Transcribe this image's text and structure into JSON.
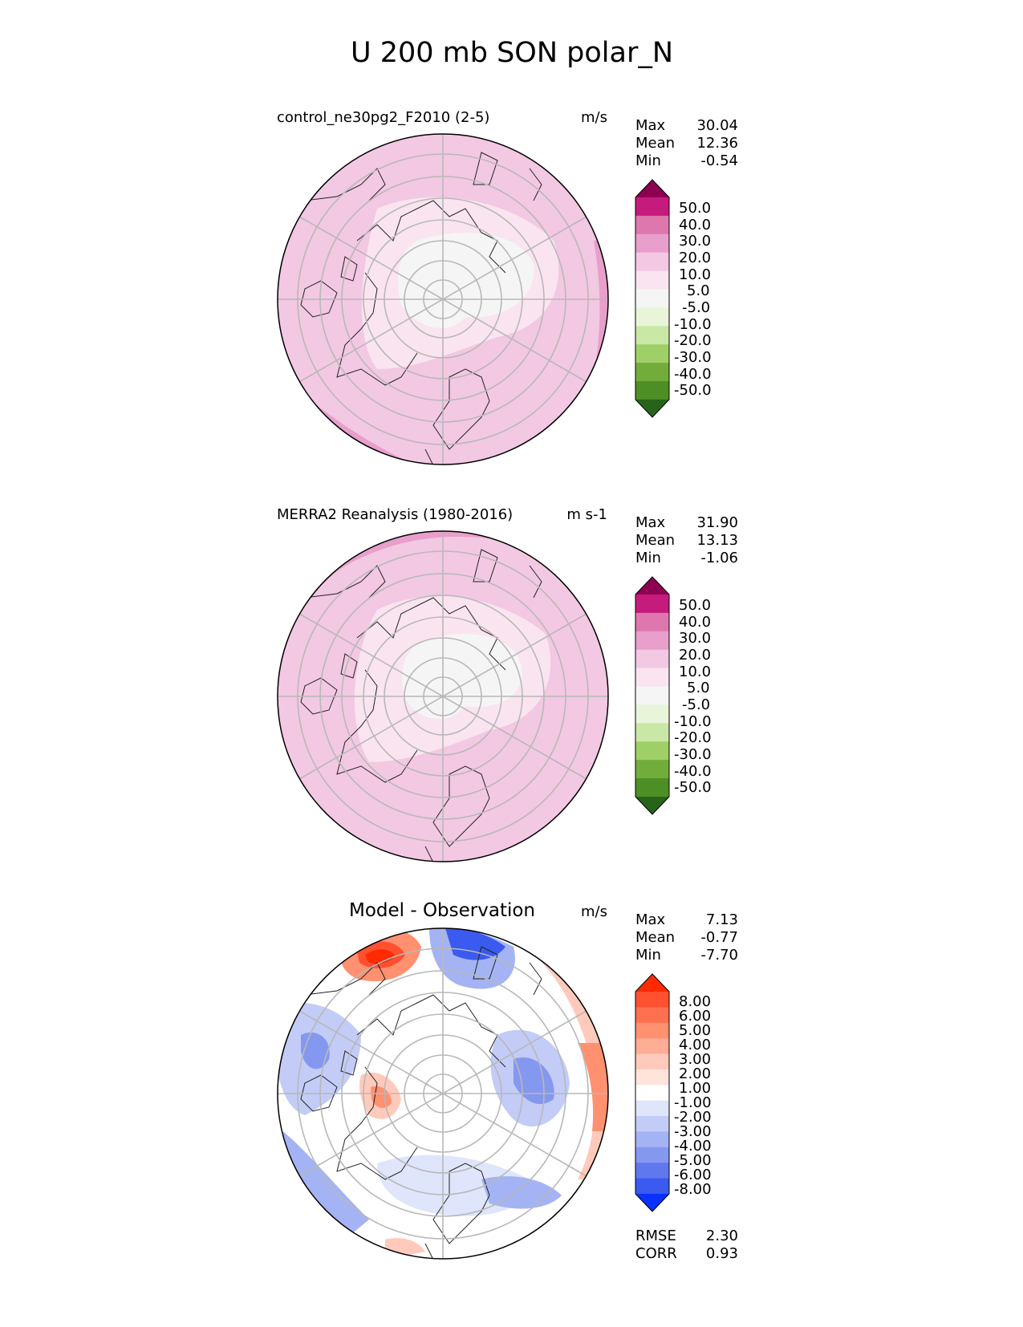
{
  "title": "U 200 mb SON polar_N",
  "panels": [
    {
      "id": "test",
      "label": "control_ne30pg2_F2010 (2-5)",
      "units": "m/s",
      "stats": [
        {
          "name": "Max",
          "value": "30.04"
        },
        {
          "name": "Mean",
          "value": "12.36"
        },
        {
          "name": "Min",
          "value": "-0.54"
        }
      ],
      "colorbar": {
        "labels": [
          "50.0",
          "40.0",
          "30.0",
          "20.0",
          "10.0",
          "5.0",
          "-5.0",
          "-10.0",
          "-20.0",
          "-30.0",
          "-40.0",
          "-50.0"
        ],
        "colors": [
          "#8e0152",
          "#c51b7d",
          "#de77ae",
          "#e89fcb",
          "#f3c8e2",
          "#fae4f0",
          "#f5f5f5",
          "#e8f5d8",
          "#c9e8a5",
          "#9fd068",
          "#72ad3c",
          "#4d8f25",
          "#276419"
        ]
      }
    },
    {
      "id": "reference",
      "label": "MERRA2 Reanalysis (1980-2016)",
      "units": "m s-1",
      "stats": [
        {
          "name": "Max",
          "value": "31.90"
        },
        {
          "name": "Mean",
          "value": "13.13"
        },
        {
          "name": "Min",
          "value": "-1.06"
        }
      ],
      "colorbar": {
        "labels": [
          "50.0",
          "40.0",
          "30.0",
          "20.0",
          "10.0",
          "5.0",
          "-5.0",
          "-10.0",
          "-20.0",
          "-30.0",
          "-40.0",
          "-50.0"
        ],
        "colors": [
          "#8e0152",
          "#c51b7d",
          "#de77ae",
          "#e89fcb",
          "#f3c8e2",
          "#fae4f0",
          "#f5f5f5",
          "#e8f5d8",
          "#c9e8a5",
          "#9fd068",
          "#72ad3c",
          "#4d8f25",
          "#276419"
        ]
      }
    },
    {
      "id": "diff",
      "label": "Model - Observation",
      "units": "m/s",
      "stats": [
        {
          "name": "Max",
          "value": "7.13"
        },
        {
          "name": "Mean",
          "value": "-0.77"
        },
        {
          "name": "Min",
          "value": "-7.70"
        }
      ],
      "colorbar": {
        "labels": [
          "8.00",
          "6.00",
          "5.00",
          "4.00",
          "3.00",
          "2.00",
          "1.00",
          "-1.00",
          "-2.00",
          "-3.00",
          "-4.00",
          "-5.00",
          "-6.00",
          "-8.00"
        ],
        "colors": [
          "#ff2a00",
          "#ff5030",
          "#ff7050",
          "#ff9070",
          "#ffad95",
          "#ffcabb",
          "#ffe4dc",
          "#ffffff",
          "#dfe5fb",
          "#c2ccf7",
          "#a4b3f3",
          "#8598f0",
          "#5f78ee",
          "#3a5af0",
          "#0a32ff"
        ]
      },
      "metrics": [
        {
          "name": "RMSE",
          "value": "2.30"
        },
        {
          "name": "CORR",
          "value": "0.93"
        }
      ]
    }
  ]
}
